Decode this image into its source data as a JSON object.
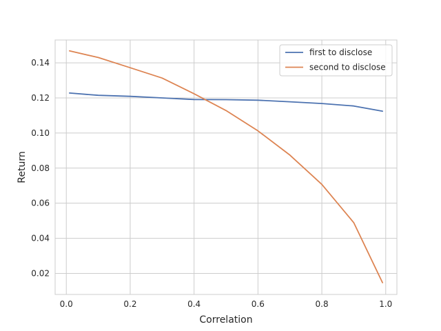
{
  "chart_data": {
    "type": "line",
    "title": "",
    "xlabel": "Correlation",
    "ylabel": "Return",
    "xlim": [
      -0.035,
      1.035
    ],
    "ylim": [
      0.008,
      0.153
    ],
    "xticks": [
      0.0,
      0.2,
      0.4,
      0.6,
      0.8,
      1.0
    ],
    "xtick_labels": [
      "0.0",
      "0.2",
      "0.4",
      "0.6",
      "0.8",
      "1.0"
    ],
    "yticks": [
      0.02,
      0.04,
      0.06,
      0.08,
      0.1,
      0.12,
      0.14
    ],
    "ytick_labels": [
      "0.02",
      "0.04",
      "0.06",
      "0.08",
      "0.10",
      "0.12",
      "0.14"
    ],
    "grid": true,
    "legend_position": "upper right",
    "x": [
      0.01,
      0.1,
      0.2,
      0.3,
      0.4,
      0.5,
      0.6,
      0.7,
      0.8,
      0.9,
      0.99
    ],
    "series": [
      {
        "name": "first to disclose",
        "color": "#4c72b0",
        "values": [
          0.1228,
          0.1215,
          0.1209,
          0.12,
          0.1191,
          0.119,
          0.1187,
          0.1178,
          0.1168,
          0.1154,
          0.1124
        ]
      },
      {
        "name": "second to disclose",
        "color": "#dd8452",
        "values": [
          0.1468,
          0.143,
          0.1372,
          0.1313,
          0.1224,
          0.1128,
          0.1012,
          0.0874,
          0.0707,
          0.0489,
          0.0147
        ]
      }
    ]
  }
}
